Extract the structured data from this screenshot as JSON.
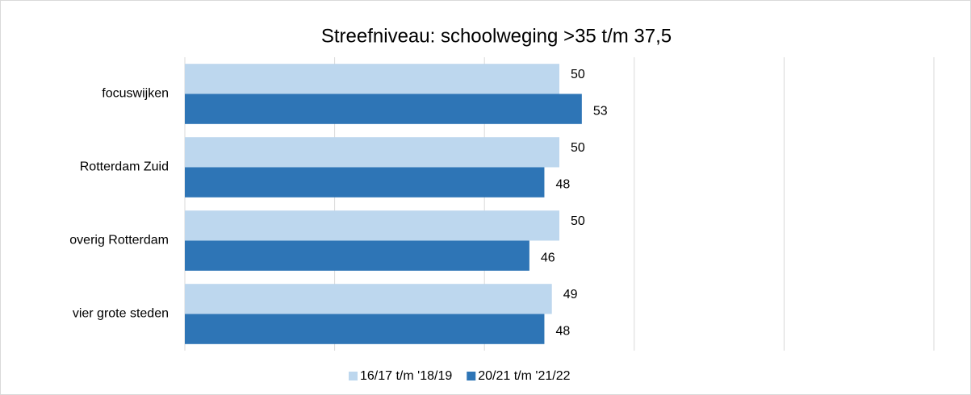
{
  "chart_data": {
    "type": "bar",
    "orientation": "horizontal",
    "title": "Streefniveau: schoolweging >35 t/m 37,5",
    "categories": [
      "focuswijken",
      "Rotterdam Zuid",
      "overig Rotterdam",
      "vier grote steden"
    ],
    "series": [
      {
        "name": "16/17 t/m '18/19",
        "color": "#bdd7ee",
        "values": [
          50,
          50,
          50,
          49
        ]
      },
      {
        "name": "20/21 t/m '21/22",
        "color": "#2e75b6",
        "values": [
          53,
          48,
          46,
          48
        ]
      }
    ],
    "xlim": [
      0,
      100
    ],
    "xticks": [
      0,
      20,
      40,
      60,
      80,
      100
    ],
    "grid": true,
    "legend": "bottom"
  }
}
